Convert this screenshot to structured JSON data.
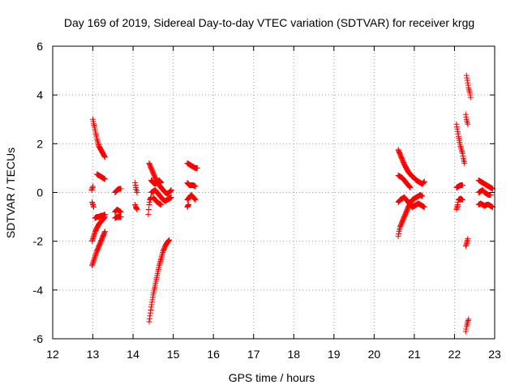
{
  "chart_data": {
    "type": "scatter",
    "title": "Day 169 of 2019, Sidereal Day-to-day VTEC variation (SDTVAR) for receiver krgg",
    "xlabel": "GPS time / hours",
    "ylabel": "SDTVAR / TECUs",
    "xlim": [
      12,
      23
    ],
    "ylim": [
      -6,
      6
    ],
    "xticks": [
      "12",
      "13",
      "14",
      "15",
      "16",
      "17",
      "18",
      "19",
      "20",
      "21",
      "22",
      "23"
    ],
    "yticks": [
      "-6",
      "-4",
      "-2",
      "0",
      "2",
      "4",
      "6"
    ],
    "grid": true,
    "marker": "+",
    "color": "#ff0000",
    "tracks": [
      [
        [
          13.0,
          3.0
        ],
        [
          13.05,
          2.6
        ],
        [
          13.1,
          2.2
        ],
        [
          13.15,
          1.9
        ],
        [
          13.2,
          1.75
        ],
        [
          13.25,
          1.6
        ],
        [
          13.3,
          1.45
        ]
      ],
      [
        [
          12.97,
          0.1
        ],
        [
          13.0,
          0.25
        ]
      ],
      [
        [
          13.1,
          0.75
        ],
        [
          13.15,
          0.7
        ],
        [
          13.2,
          0.65
        ],
        [
          13.25,
          0.6
        ],
        [
          13.3,
          0.55
        ]
      ],
      [
        [
          12.98,
          -0.4
        ],
        [
          13.0,
          -0.5
        ],
        [
          13.02,
          -0.6
        ]
      ],
      [
        [
          13.05,
          -1.05
        ],
        [
          13.1,
          -1.0
        ],
        [
          13.15,
          -1.0
        ],
        [
          13.2,
          -0.95
        ],
        [
          13.25,
          -0.95
        ],
        [
          13.3,
          -0.9
        ]
      ],
      [
        [
          12.98,
          -2.0
        ],
        [
          13.02,
          -1.8
        ],
        [
          13.06,
          -1.6
        ],
        [
          13.1,
          -1.45
        ],
        [
          13.15,
          -1.3
        ],
        [
          13.2,
          -1.2
        ],
        [
          13.25,
          -1.1
        ],
        [
          13.3,
          -1.0
        ]
      ],
      [
        [
          12.98,
          -3.0
        ],
        [
          13.02,
          -2.8
        ],
        [
          13.06,
          -2.6
        ],
        [
          13.1,
          -2.4
        ],
        [
          13.15,
          -2.2
        ],
        [
          13.2,
          -2.0
        ],
        [
          13.25,
          -1.8
        ],
        [
          13.3,
          -1.6
        ]
      ],
      [
        [
          13.55,
          0.0
        ],
        [
          13.6,
          0.1
        ],
        [
          13.65,
          0.15
        ],
        [
          13.7,
          0.15
        ]
      ],
      [
        [
          13.55,
          -0.8
        ],
        [
          13.6,
          -0.7
        ],
        [
          13.65,
          -0.75
        ],
        [
          13.7,
          -0.8
        ]
      ],
      [
        [
          13.55,
          -1.05
        ],
        [
          13.6,
          -1.0
        ],
        [
          13.65,
          -1.0
        ],
        [
          13.7,
          -1.0
        ]
      ],
      [
        [
          14.05,
          0.4
        ],
        [
          14.07,
          0.2
        ],
        [
          14.1,
          0.0
        ]
      ],
      [
        [
          14.05,
          -0.5
        ],
        [
          14.07,
          -0.6
        ],
        [
          14.1,
          -0.7
        ]
      ],
      [
        [
          14.38,
          -0.9
        ],
        [
          14.4,
          -0.5
        ],
        [
          14.42,
          -0.3
        ],
        [
          14.45,
          -0.2
        ]
      ],
      [
        [
          14.4,
          1.2
        ],
        [
          14.45,
          1.0
        ],
        [
          14.5,
          0.8
        ],
        [
          14.55,
          0.6
        ],
        [
          14.6,
          0.4
        ],
        [
          14.65,
          0.3
        ],
        [
          14.7,
          0.2
        ],
        [
          14.75,
          0.1
        ],
        [
          14.8,
          0.0
        ],
        [
          14.85,
          -0.05
        ],
        [
          14.9,
          0.0
        ],
        [
          14.95,
          0.1
        ]
      ],
      [
        [
          14.45,
          0.5
        ],
        [
          14.5,
          0.4
        ],
        [
          14.55,
          0.35
        ],
        [
          14.6,
          0.4
        ],
        [
          14.65,
          0.5
        ],
        [
          14.7,
          0.4
        ]
      ],
      [
        [
          14.45,
          0.0
        ],
        [
          14.5,
          0.05
        ],
        [
          14.55,
          0.1
        ],
        [
          14.6,
          0.0
        ],
        [
          14.65,
          -0.1
        ],
        [
          14.7,
          -0.2
        ],
        [
          14.75,
          -0.3
        ],
        [
          14.8,
          -0.35
        ],
        [
          14.85,
          -0.3
        ],
        [
          14.9,
          -0.25
        ],
        [
          14.95,
          -0.2
        ]
      ],
      [
        [
          14.5,
          -0.2
        ],
        [
          14.55,
          -0.3
        ],
        [
          14.6,
          -0.4
        ],
        [
          14.65,
          -0.45
        ],
        [
          14.7,
          -0.5
        ]
      ],
      [
        [
          14.4,
          -5.3
        ],
        [
          14.45,
          -4.7
        ],
        [
          14.5,
          -4.2
        ],
        [
          14.55,
          -3.8
        ],
        [
          14.6,
          -3.4
        ],
        [
          14.65,
          -3.0
        ],
        [
          14.7,
          -2.7
        ],
        [
          14.75,
          -2.4
        ],
        [
          14.8,
          -2.2
        ],
        [
          14.85,
          -2.05
        ],
        [
          14.9,
          -1.95
        ]
      ],
      [
        [
          15.35,
          1.2
        ],
        [
          15.4,
          1.15
        ],
        [
          15.45,
          1.1
        ],
        [
          15.5,
          1.05
        ],
        [
          15.55,
          1.0
        ],
        [
          15.6,
          1.0
        ]
      ],
      [
        [
          15.35,
          0.4
        ],
        [
          15.4,
          0.3
        ],
        [
          15.45,
          0.3
        ],
        [
          15.5,
          0.3
        ],
        [
          15.55,
          0.25
        ]
      ],
      [
        [
          15.35,
          -0.3
        ],
        [
          15.4,
          -0.2
        ],
        [
          15.45,
          -0.1
        ],
        [
          15.5,
          -0.2
        ],
        [
          15.55,
          -0.3
        ]
      ],
      [
        [
          15.35,
          -0.6
        ],
        [
          15.38,
          -0.5
        ]
      ],
      [
        [
          20.6,
          1.75
        ],
        [
          20.65,
          1.55
        ],
        [
          20.7,
          1.35
        ],
        [
          20.75,
          1.15
        ],
        [
          20.8,
          1.0
        ],
        [
          20.85,
          0.85
        ],
        [
          20.9,
          0.75
        ],
        [
          20.95,
          0.65
        ],
        [
          21.0,
          0.6
        ],
        [
          21.05,
          0.5
        ],
        [
          21.1,
          0.45
        ],
        [
          21.15,
          0.4
        ],
        [
          21.2,
          0.35
        ],
        [
          21.25,
          0.45
        ]
      ],
      [
        [
          20.6,
          0.7
        ],
        [
          20.65,
          0.65
        ],
        [
          20.7,
          0.6
        ],
        [
          20.75,
          0.5
        ],
        [
          20.8,
          0.4
        ],
        [
          20.85,
          0.3
        ],
        [
          20.9,
          0.2
        ]
      ],
      [
        [
          20.6,
          -1.8
        ],
        [
          20.62,
          -1.6
        ],
        [
          20.65,
          -1.4
        ],
        [
          20.7,
          -1.2
        ],
        [
          20.75,
          -1.0
        ],
        [
          20.8,
          -0.8
        ],
        [
          20.85,
          -0.6
        ],
        [
          20.9,
          -0.45
        ],
        [
          20.95,
          -0.3
        ],
        [
          21.0,
          -0.25
        ],
        [
          21.05,
          -0.2
        ],
        [
          21.1,
          -0.15
        ],
        [
          21.15,
          -0.1
        ],
        [
          21.2,
          -0.15
        ]
      ],
      [
        [
          20.6,
          -0.4
        ],
        [
          20.65,
          -0.3
        ],
        [
          20.7,
          -0.25
        ],
        [
          20.75,
          -0.2
        ],
        [
          20.8,
          -0.3
        ],
        [
          20.85,
          -0.4
        ],
        [
          20.9,
          -0.5
        ],
        [
          20.95,
          -0.6
        ],
        [
          21.0,
          -0.55
        ],
        [
          21.05,
          -0.5
        ],
        [
          21.1,
          -0.45
        ],
        [
          21.15,
          -0.5
        ],
        [
          21.2,
          -0.55
        ],
        [
          21.25,
          -0.6
        ]
      ],
      [
        [
          22.05,
          2.8
        ],
        [
          22.1,
          2.3
        ],
        [
          22.15,
          1.9
        ],
        [
          22.2,
          1.6
        ],
        [
          22.22,
          1.4
        ],
        [
          22.25,
          1.2
        ]
      ],
      [
        [
          22.05,
          -0.7
        ],
        [
          22.08,
          -0.5
        ],
        [
          22.1,
          -0.3
        ],
        [
          22.15,
          -0.25
        ],
        [
          22.2,
          -0.3
        ]
      ],
      [
        [
          22.05,
          0.2
        ],
        [
          22.1,
          0.25
        ],
        [
          22.15,
          0.3
        ],
        [
          22.2,
          0.3
        ]
      ],
      [
        [
          22.3,
          4.8
        ],
        [
          22.33,
          4.5
        ],
        [
          22.35,
          4.3
        ],
        [
          22.38,
          4.1
        ],
        [
          22.4,
          3.9
        ]
      ],
      [
        [
          22.28,
          3.2
        ],
        [
          22.3,
          3.0
        ],
        [
          22.33,
          2.8
        ]
      ],
      [
        [
          22.28,
          -2.2
        ],
        [
          22.3,
          -2.1
        ],
        [
          22.33,
          -1.9
        ]
      ],
      [
        [
          22.28,
          -5.7
        ],
        [
          22.3,
          -5.5
        ],
        [
          22.33,
          -5.3
        ],
        [
          22.35,
          -5.2
        ]
      ],
      [
        [
          22.6,
          0.5
        ],
        [
          22.65,
          0.45
        ],
        [
          22.7,
          0.4
        ],
        [
          22.75,
          0.35
        ],
        [
          22.8,
          0.3
        ],
        [
          22.85,
          0.25
        ],
        [
          22.9,
          0.2
        ],
        [
          22.95,
          0.15
        ]
      ],
      [
        [
          22.6,
          0.0
        ],
        [
          22.65,
          0.05
        ],
        [
          22.7,
          0.1
        ],
        [
          22.75,
          0.0
        ],
        [
          22.8,
          -0.05
        ],
        [
          22.85,
          -0.1
        ],
        [
          22.9,
          -0.1
        ]
      ],
      [
        [
          22.6,
          -0.5
        ],
        [
          22.65,
          -0.45
        ],
        [
          22.7,
          -0.5
        ],
        [
          22.75,
          -0.55
        ],
        [
          22.8,
          -0.5
        ],
        [
          22.85,
          -0.5
        ],
        [
          22.9,
          -0.55
        ],
        [
          22.95,
          -0.6
        ]
      ]
    ]
  }
}
